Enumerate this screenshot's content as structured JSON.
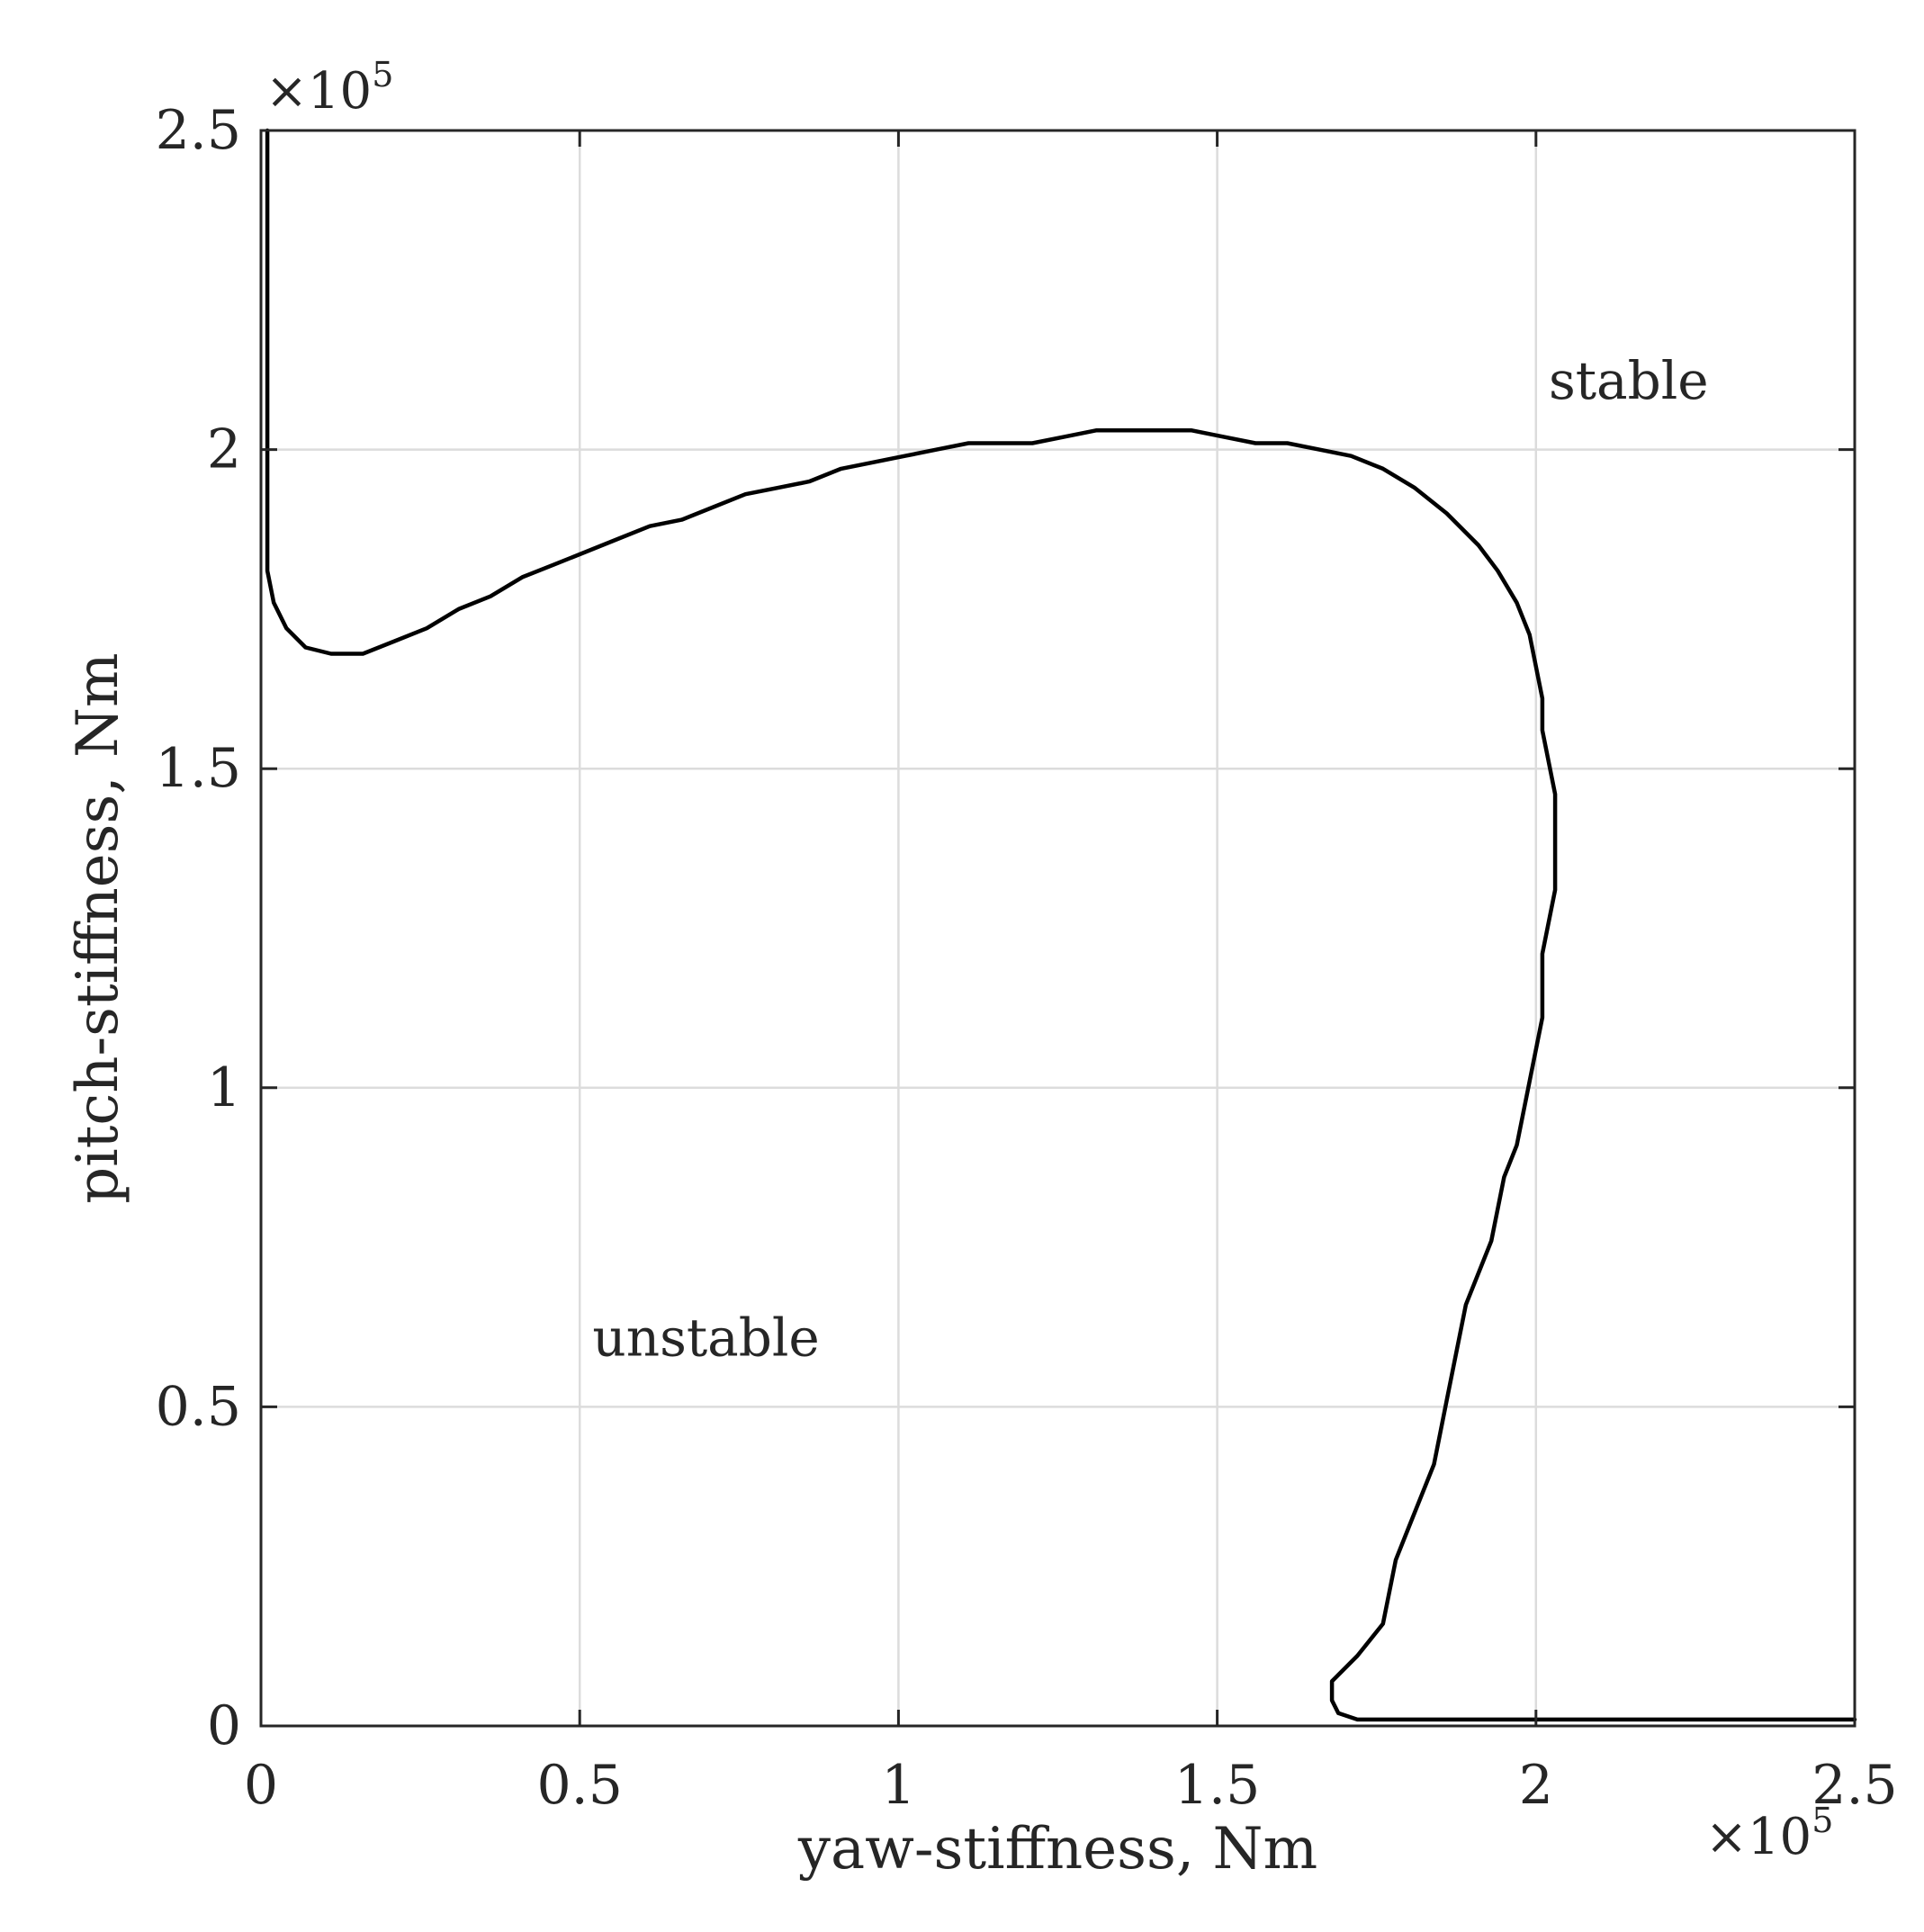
{
  "chart_data": {
    "type": "line",
    "title": "",
    "xlabel": "yaw-stiffness, Nm",
    "ylabel": "pitch-stiffness, Nm",
    "xlim": [
      0,
      2.5
    ],
    "ylim": [
      0,
      2.5
    ],
    "x_multiplier_label": "×10",
    "x_multiplier_exponent": "5",
    "y_multiplier_label": "×10",
    "y_multiplier_exponent": "5",
    "xticks": [
      0,
      0.5,
      1,
      1.5,
      2,
      2.5
    ],
    "xtick_labels": [
      "0",
      "0.5",
      "1",
      "1.5",
      "2",
      "2.5"
    ],
    "yticks": [
      0,
      0.5,
      1,
      1.5,
      2,
      2.5
    ],
    "ytick_labels": [
      "0",
      "0.5",
      "1",
      "1.5",
      "2",
      "2.5"
    ],
    "grid": true,
    "colors": {
      "line": "#000000",
      "axes": "#262626",
      "grid": "#dcdcdc"
    },
    "annotations": [
      {
        "text": "stable",
        "x": 2.02,
        "y": 2.08
      },
      {
        "text": "unstable",
        "x": 0.52,
        "y": 0.58
      }
    ],
    "series": [
      {
        "x": [
          0.01,
          0.01,
          0.02,
          0.04,
          0.07,
          0.11,
          0.16,
          0.21,
          0.26,
          0.31,
          0.36,
          0.41,
          0.46,
          0.51,
          0.56,
          0.61,
          0.66,
          0.71,
          0.76,
          0.81,
          0.86,
          0.91,
          0.96,
          1.01,
          1.06,
          1.11,
          1.16,
          1.21,
          1.26,
          1.31,
          1.36,
          1.41,
          1.46,
          1.51,
          1.56,
          1.61,
          1.66,
          1.71,
          1.76,
          1.81,
          1.86,
          1.91,
          1.94,
          1.97,
          1.99,
          2.01,
          2.01,
          2.03,
          2.03,
          2.01,
          2.01,
          1.99,
          1.97,
          1.95,
          1.93,
          1.89,
          1.88,
          1.86,
          1.84,
          1.82,
          1.8,
          1.78,
          1.76,
          1.72,
          1.68,
          1.68,
          1.69,
          1.72,
          1.76,
          1.81,
          2.5
        ],
        "y": [
          2.5,
          1.81,
          1.76,
          1.72,
          1.69,
          1.68,
          1.68,
          1.7,
          1.72,
          1.75,
          1.77,
          1.8,
          1.82,
          1.84,
          1.86,
          1.88,
          1.89,
          1.91,
          1.93,
          1.94,
          1.95,
          1.97,
          1.98,
          1.99,
          2.0,
          2.01,
          2.01,
          2.01,
          2.02,
          2.03,
          2.03,
          2.03,
          2.03,
          2.02,
          2.01,
          2.01,
          2.0,
          1.99,
          1.97,
          1.94,
          1.9,
          1.85,
          1.81,
          1.76,
          1.71,
          1.61,
          1.56,
          1.46,
          1.31,
          1.21,
          1.11,
          1.01,
          0.91,
          0.86,
          0.76,
          0.66,
          0.61,
          0.51,
          0.41,
          0.36,
          0.31,
          0.26,
          0.16,
          0.11,
          0.07,
          0.04,
          0.02,
          0.01,
          0.01,
          0.01,
          0.01
        ]
      }
    ]
  }
}
